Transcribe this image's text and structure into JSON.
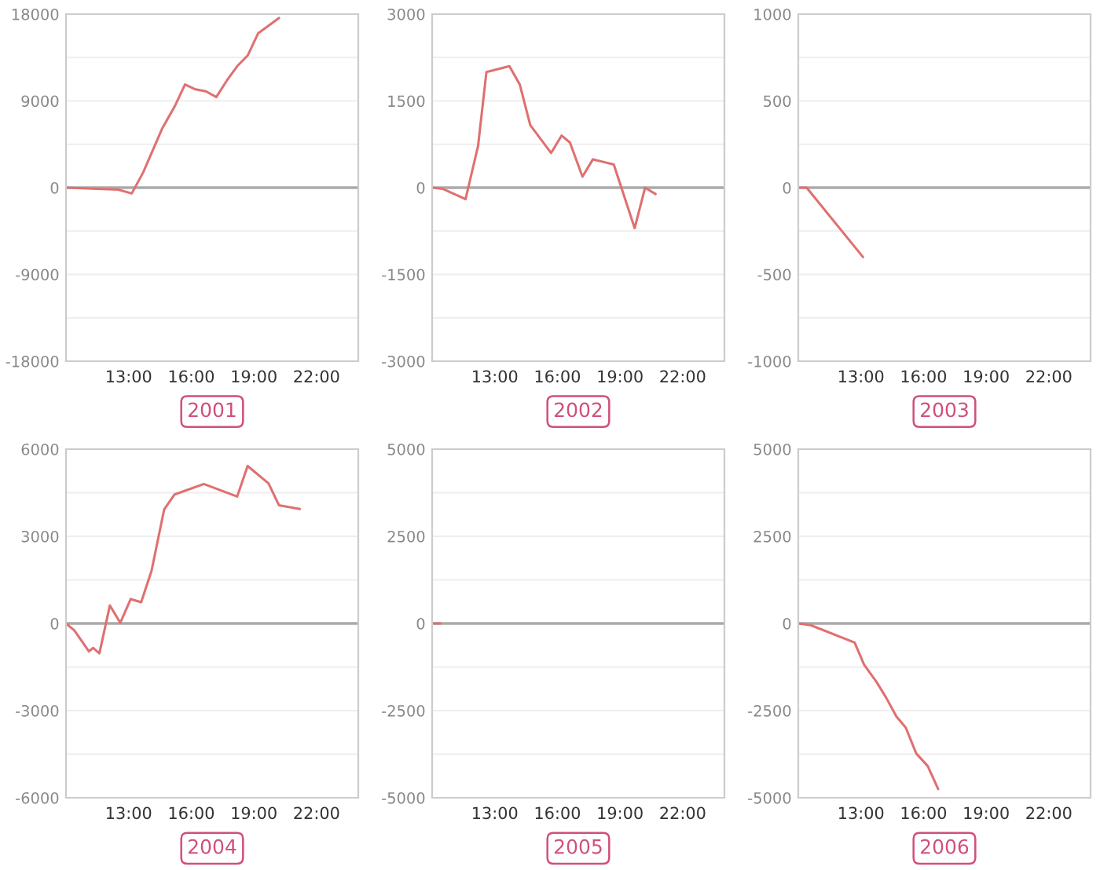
{
  "chart_data": [
    {
      "type": "line",
      "title": "2001",
      "x": [
        10.0,
        12.5,
        13.15,
        13.7,
        14.6,
        15.2,
        15.7,
        16.2,
        16.7,
        17.2,
        17.7,
        18.2,
        18.7,
        19.2,
        20.2
      ],
      "series": [
        {
          "color": "#e07070",
          "values": [
            0,
            -200,
            -600,
            1600,
            6100,
            8400,
            10700,
            10200,
            10000,
            9400,
            11100,
            12600,
            13700,
            16000,
            17600
          ]
        }
      ],
      "xlim": [
        10,
        24
      ],
      "xticks": [
        {
          "value": 13,
          "label": "13:00"
        },
        {
          "value": 16,
          "label": "16:00"
        },
        {
          "value": 19,
          "label": "19:00"
        },
        {
          "value": 22,
          "label": "22:00"
        }
      ],
      "ylim": [
        -18000,
        18000
      ],
      "yticks": [
        -18000,
        {
          "value": -13500,
          "label": null
        },
        -9000,
        {
          "value": -4500,
          "label": null
        },
        0,
        {
          "value": 4500,
          "label": null
        },
        9000,
        {
          "value": 13500,
          "label": null
        },
        18000
      ],
      "grid": "y",
      "ref_lines": [
        {
          "axis": "y",
          "value": 0,
          "color": "#aaaaaa"
        }
      ]
    },
    {
      "type": "line",
      "title": "2002",
      "x": [
        10.0,
        10.5,
        11.6,
        12.2,
        12.6,
        13.7,
        14.2,
        14.7,
        15.7,
        16.2,
        16.6,
        17.2,
        17.7,
        18.7,
        19.7,
        20.2,
        20.7
      ],
      "series": [
        {
          "color": "#e07070",
          "values": [
            0,
            -20,
            -200,
            720,
            2000,
            2100,
            1780,
            1080,
            600,
            900,
            780,
            190,
            490,
            400,
            -700,
            0,
            -110
          ]
        }
      ],
      "xlim": [
        10,
        24
      ],
      "xticks": [
        {
          "value": 13,
          "label": "13:00"
        },
        {
          "value": 16,
          "label": "16:00"
        },
        {
          "value": 19,
          "label": "19:00"
        },
        {
          "value": 22,
          "label": "22:00"
        }
      ],
      "ylim": [
        -3000,
        3000
      ],
      "yticks": [
        -3000,
        {
          "value": -2250,
          "label": null
        },
        -1500,
        {
          "value": -750,
          "label": null
        },
        0,
        {
          "value": 750,
          "label": null
        },
        1500,
        {
          "value": 2250,
          "label": null
        },
        3000
      ],
      "grid": "y",
      "ref_lines": [
        {
          "axis": "y",
          "value": 0,
          "color": "#aaaaaa"
        }
      ]
    },
    {
      "type": "line",
      "title": "2003",
      "x": [
        10.0,
        10.4,
        13.1
      ],
      "series": [
        {
          "color": "#e07070",
          "values": [
            0,
            0,
            -400
          ]
        }
      ],
      "xlim": [
        10,
        24
      ],
      "xticks": [
        {
          "value": 13,
          "label": "13:00"
        },
        {
          "value": 16,
          "label": "16:00"
        },
        {
          "value": 19,
          "label": "19:00"
        },
        {
          "value": 22,
          "label": "22:00"
        }
      ],
      "ylim": [
        -1000,
        1000
      ],
      "yticks": [
        -1000,
        {
          "value": -750,
          "label": null
        },
        -500,
        {
          "value": -250,
          "label": null
        },
        0,
        {
          "value": 250,
          "label": null
        },
        500,
        {
          "value": 750,
          "label": null
        },
        1000
      ],
      "grid": "y",
      "ref_lines": [
        {
          "axis": "y",
          "value": 0,
          "color": "#aaaaaa"
        }
      ]
    },
    {
      "type": "line",
      "title": "2004",
      "x": [
        10.0,
        10.4,
        11.1,
        11.3,
        11.6,
        12.1,
        12.6,
        13.1,
        13.6,
        14.1,
        14.7,
        15.2,
        16.6,
        18.2,
        18.7,
        19.7,
        20.2,
        21.2
      ],
      "series": [
        {
          "color": "#e07070",
          "values": [
            0,
            -240,
            -960,
            -840,
            -1030,
            620,
            20,
            840,
            730,
            1820,
            3920,
            4440,
            4800,
            4370,
            5420,
            4820,
            4070,
            3940
          ]
        }
      ],
      "xlim": [
        10,
        24
      ],
      "xticks": [
        {
          "value": 13,
          "label": "13:00"
        },
        {
          "value": 16,
          "label": "16:00"
        },
        {
          "value": 19,
          "label": "19:00"
        },
        {
          "value": 22,
          "label": "22:00"
        }
      ],
      "ylim": [
        -6000,
        6000
      ],
      "yticks": [
        -6000,
        {
          "value": -4500,
          "label": null
        },
        -3000,
        {
          "value": -1500,
          "label": null
        },
        0,
        {
          "value": 1500,
          "label": null
        },
        3000,
        {
          "value": 4500,
          "label": null
        },
        6000
      ],
      "grid": "y",
      "ref_lines": [
        {
          "axis": "y",
          "value": 0,
          "color": "#aaaaaa"
        }
      ]
    },
    {
      "type": "line",
      "title": "2005",
      "x": [
        10.0,
        10.4
      ],
      "series": [
        {
          "color": "#e07070",
          "values": [
            0,
            0
          ]
        }
      ],
      "xlim": [
        10,
        24
      ],
      "xticks": [
        {
          "value": 13,
          "label": "13:00"
        },
        {
          "value": 16,
          "label": "16:00"
        },
        {
          "value": 19,
          "label": "19:00"
        },
        {
          "value": 22,
          "label": "22:00"
        }
      ],
      "ylim": [
        -5000,
        5000
      ],
      "yticks": [
        -5000,
        {
          "value": -3750,
          "label": null
        },
        -2500,
        {
          "value": -1250,
          "label": null
        },
        0,
        {
          "value": 1250,
          "label": null
        },
        2500,
        {
          "value": 3750,
          "label": null
        },
        5000
      ],
      "grid": "y",
      "ref_lines": [
        {
          "axis": "y",
          "value": 0,
          "color": "#aaaaaa"
        }
      ]
    },
    {
      "type": "line",
      "title": "2006",
      "x": [
        10.0,
        10.6,
        12.7,
        13.15,
        13.75,
        14.2,
        14.7,
        15.15,
        15.65,
        16.2,
        16.7
      ],
      "series": [
        {
          "color": "#e07070",
          "values": [
            0,
            -50,
            -550,
            -1180,
            -1680,
            -2120,
            -2670,
            -2990,
            -3730,
            -4090,
            -4750
          ]
        }
      ],
      "xlim": [
        10,
        24
      ],
      "xticks": [
        {
          "value": 13,
          "label": "13:00"
        },
        {
          "value": 16,
          "label": "16:00"
        },
        {
          "value": 19,
          "label": "19:00"
        },
        {
          "value": 22,
          "label": "22:00"
        }
      ],
      "ylim": [
        -5000,
        5000
      ],
      "yticks": [
        -5000,
        {
          "value": -3750,
          "label": null
        },
        -2500,
        {
          "value": -1250,
          "label": null
        },
        0,
        {
          "value": 1250,
          "label": null
        },
        2500,
        {
          "value": 3750,
          "label": null
        },
        5000
      ],
      "grid": "y",
      "ref_lines": [
        {
          "axis": "y",
          "value": 0,
          "color": "#aaaaaa"
        }
      ]
    }
  ]
}
